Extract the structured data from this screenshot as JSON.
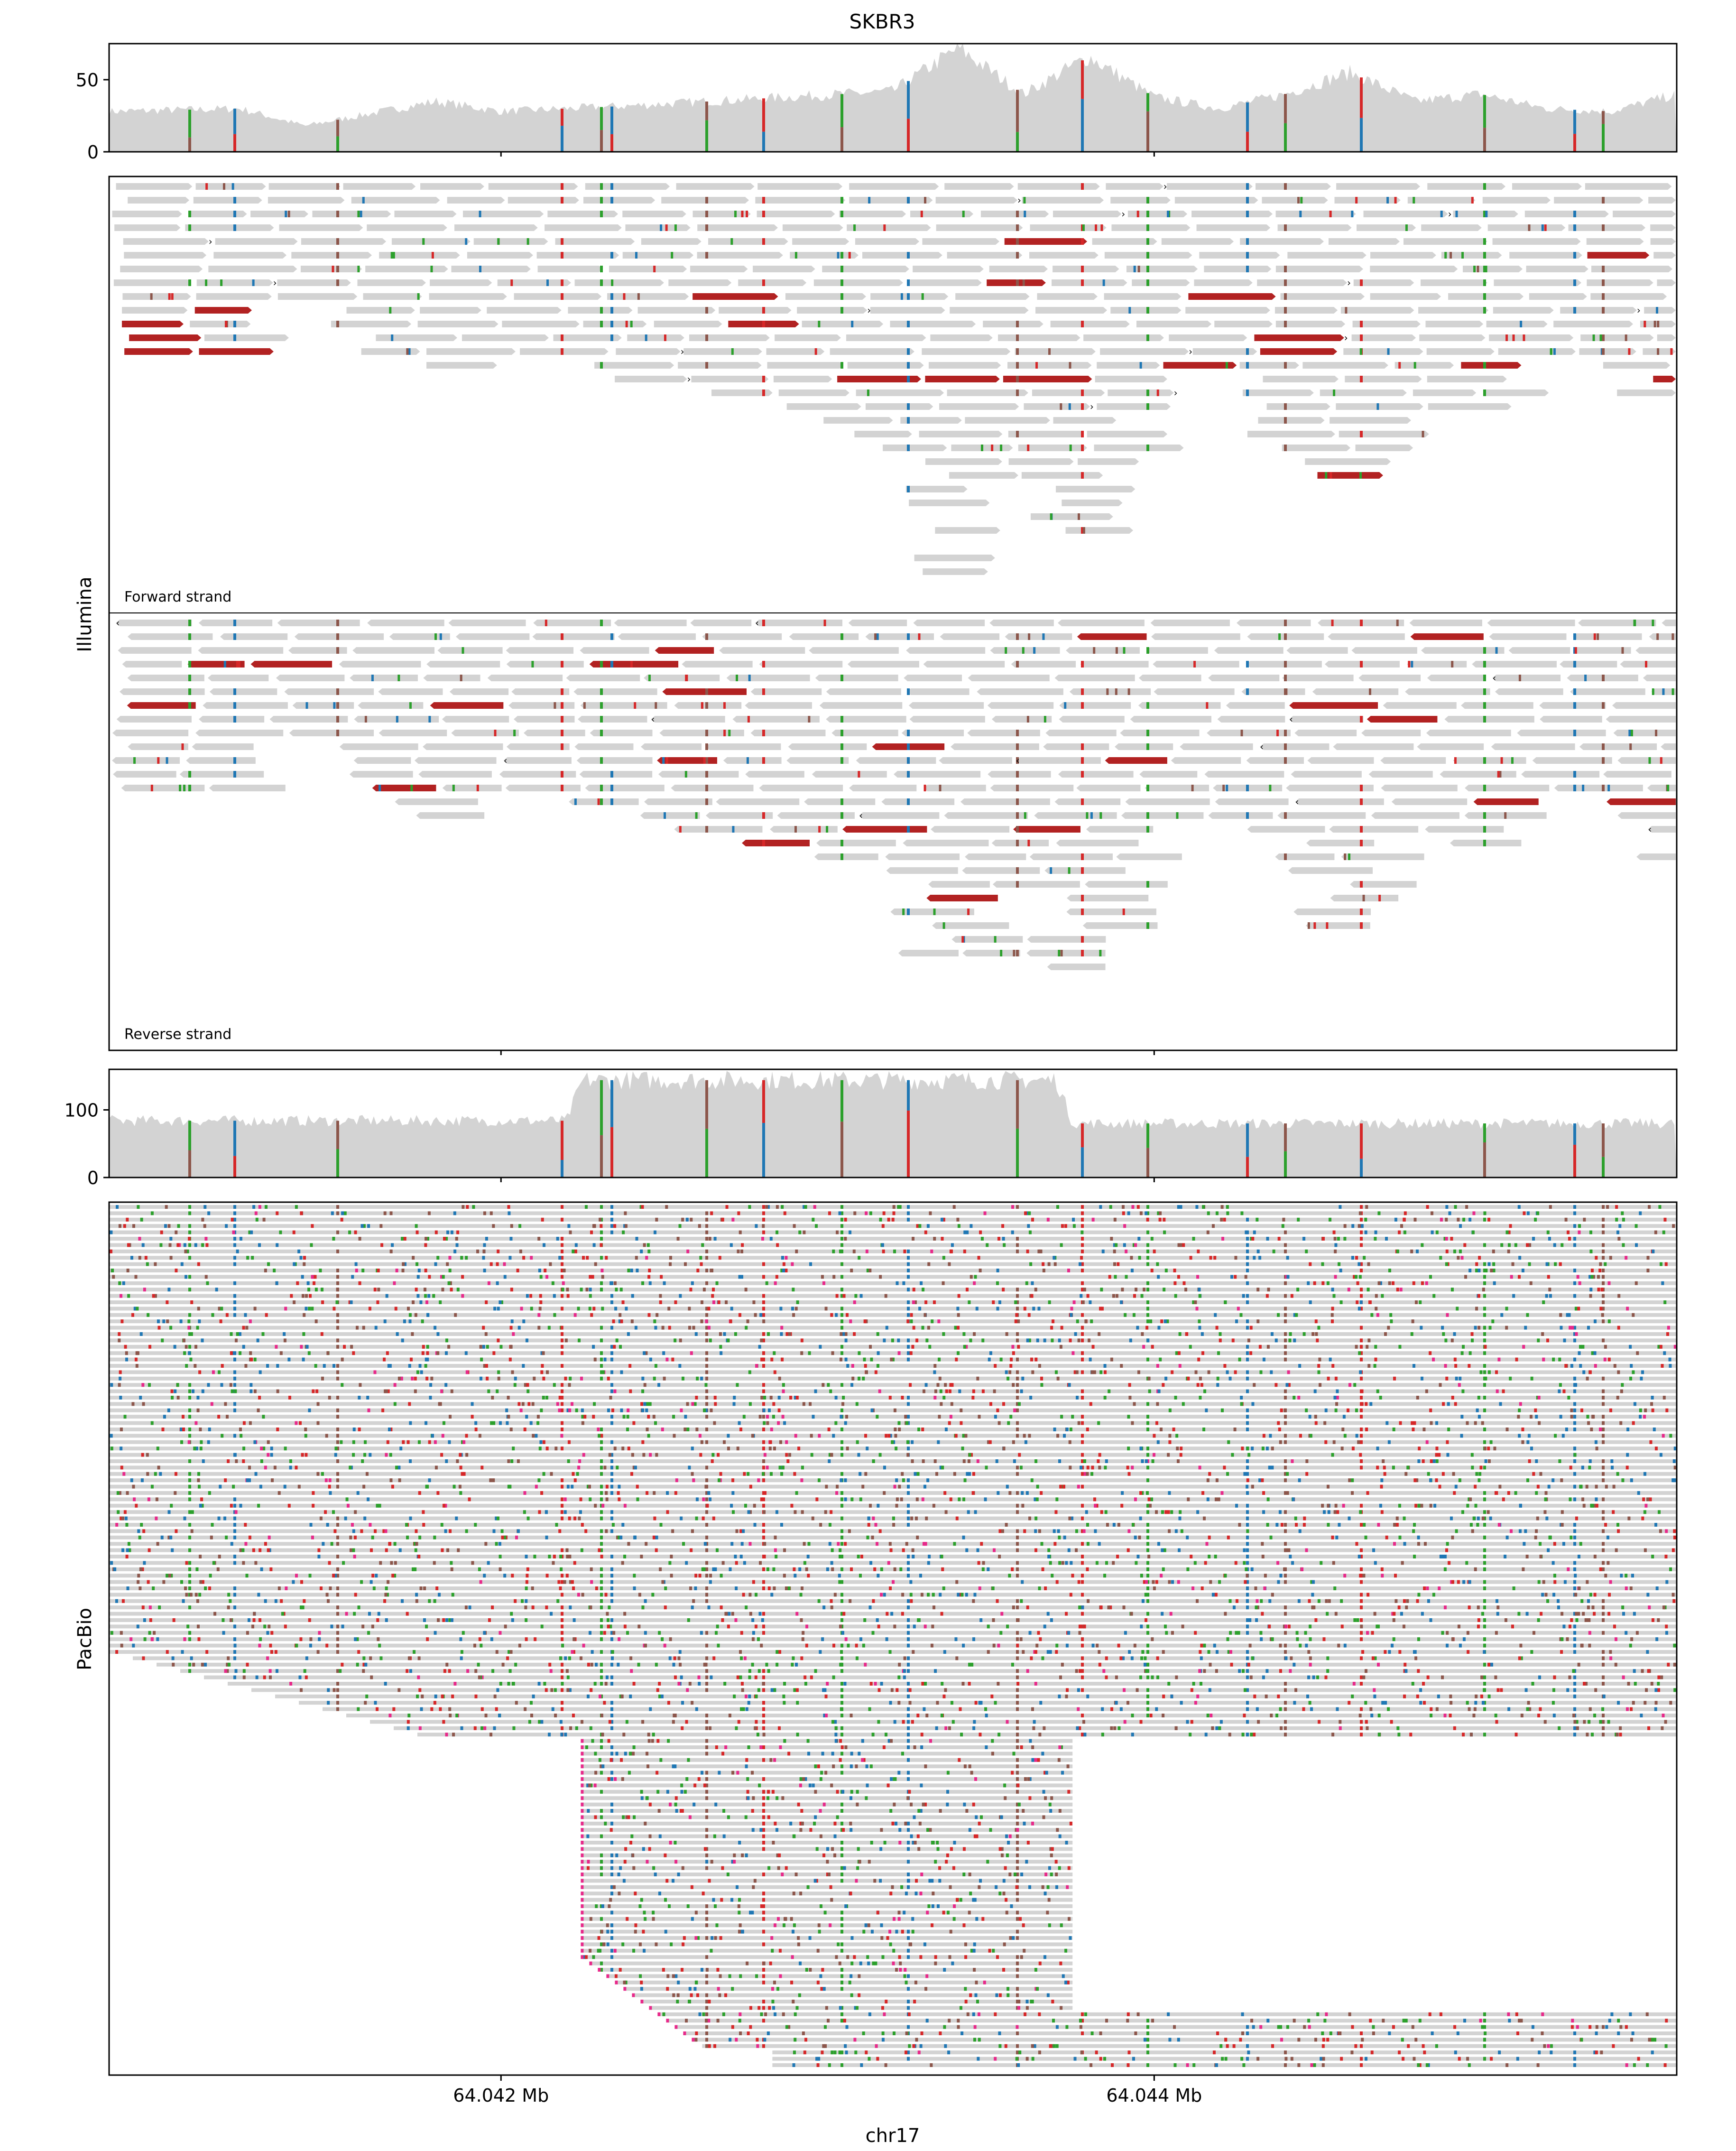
{
  "chart_data": {
    "type": "genome-track",
    "title": "SKBR3",
    "xlabel": "chr17",
    "x_range_mb": [
      64.0408,
      64.0456
    ],
    "x_ticks": [
      "64.042 Mb",
      "64.044 Mb"
    ],
    "x_tick_values_mb": [
      64.042,
      64.044
    ],
    "colors": {
      "read": "#d3d3d3",
      "A": "#2ca02c",
      "C": "#1f77b4",
      "G": "#8c564b",
      "T": "#d62728",
      "softclip": "#b22222",
      "insertion": "#e7298a",
      "frame": "#000000"
    },
    "panels": [
      {
        "name": "Illumina coverage",
        "yticks": [
          "0",
          "50"
        ],
        "ylim": [
          0,
          75
        ],
        "profile_mb": [
          64.0408,
          64.0412,
          64.0414,
          64.0418,
          64.042,
          64.0424,
          64.0432,
          64.0434,
          64.0436,
          64.0438,
          64.044,
          64.0442,
          64.0444,
          64.0446,
          64.0448,
          64.045,
          64.0452,
          64.0454,
          64.0456
        ],
        "profile_depth": [
          28,
          30,
          18,
          35,
          28,
          32,
          42,
          72,
          40,
          66,
          38,
          30,
          40,
          55,
          35,
          40,
          30,
          28,
          40
        ]
      },
      {
        "name": "Illumina reads",
        "ylabel": "Illumina",
        "strand_labels": [
          "Forward strand",
          "Reverse strand"
        ]
      },
      {
        "name": "PacBio coverage",
        "yticks": [
          "0",
          "100"
        ],
        "ylim": [
          0,
          160
        ],
        "profile_mb": [
          64.0408,
          64.0422,
          64.04225,
          64.0437,
          64.04375,
          64.0456
        ],
        "profile_depth": [
          84,
          84,
          144,
          144,
          80,
          80
        ]
      },
      {
        "name": "PacBio reads",
        "ylabel": "PacBio"
      }
    ]
  }
}
